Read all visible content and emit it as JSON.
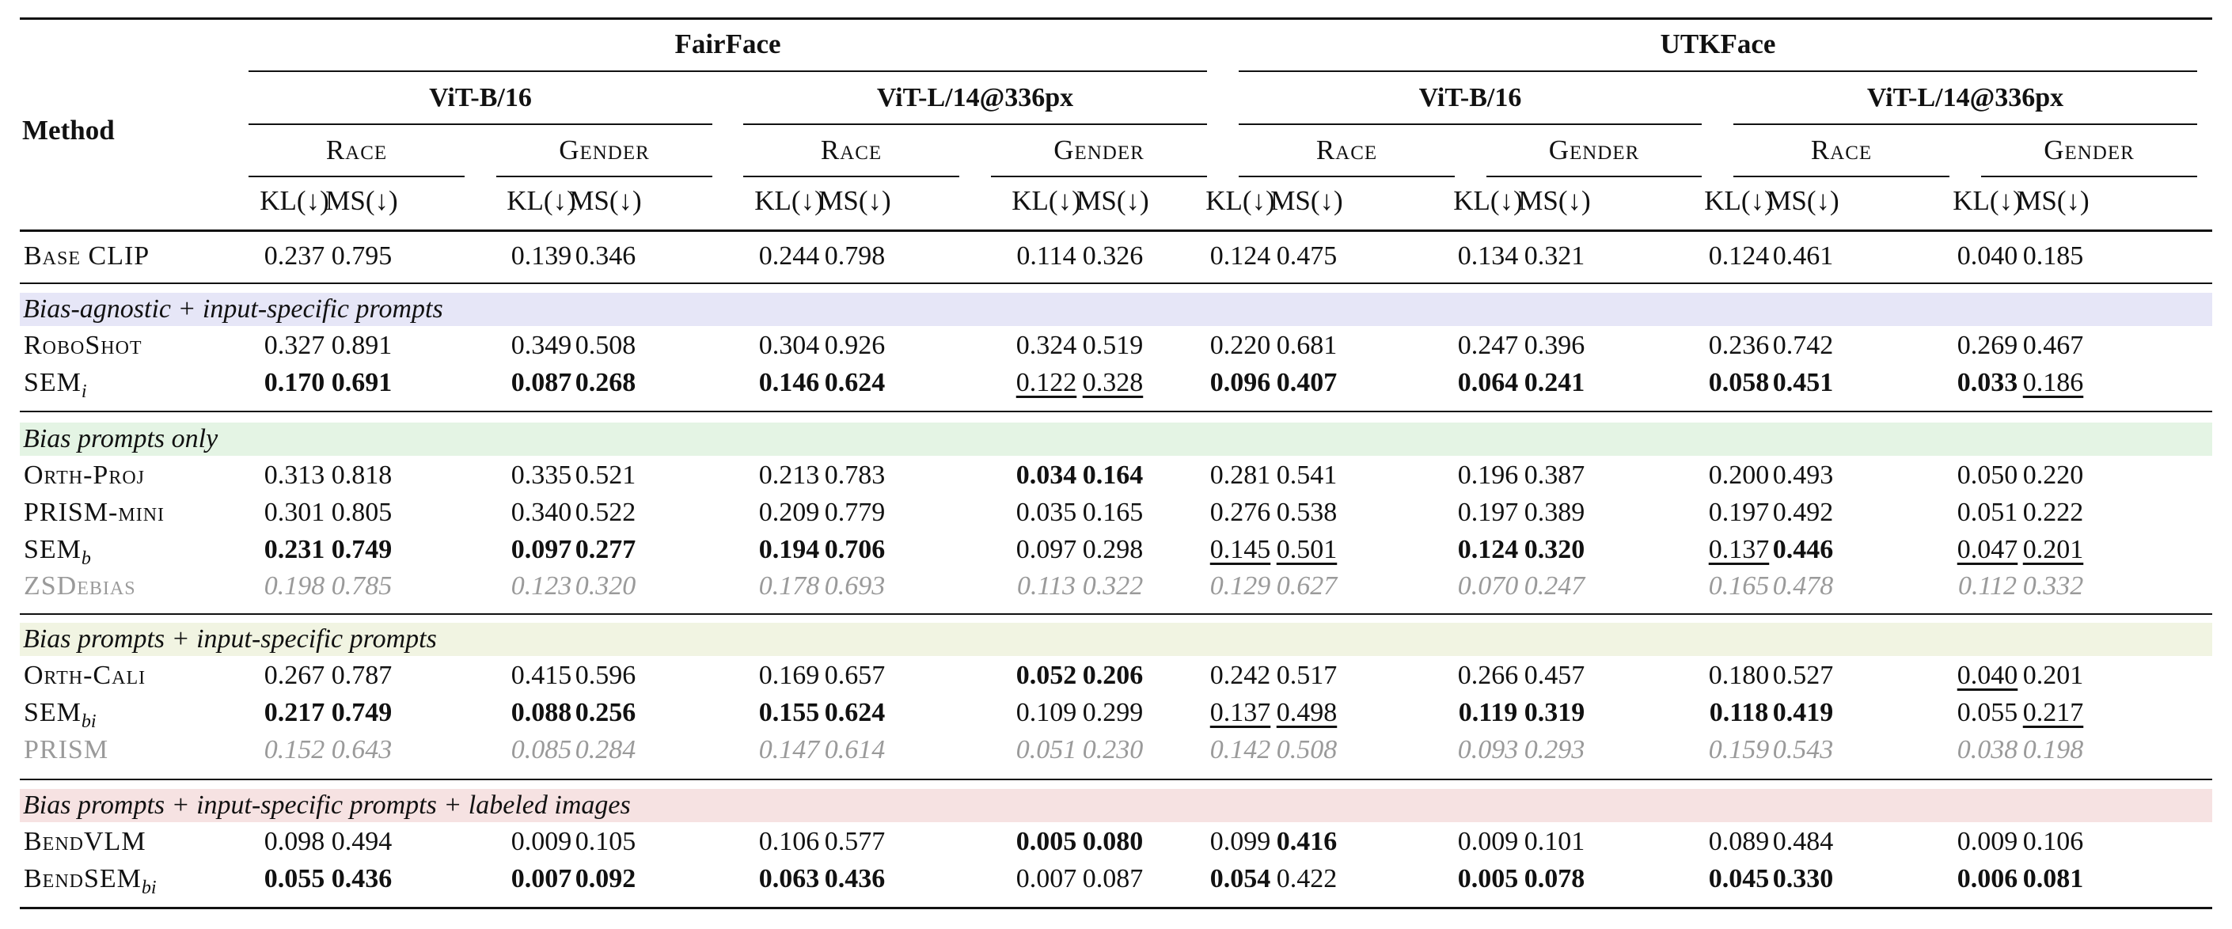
{
  "header": {
    "method": "Method",
    "datasets": [
      "FairFace",
      "UTKFace"
    ],
    "models": [
      "ViT-B/16",
      "ViT-L/14@336px",
      "ViT-B/16",
      "ViT-L/14@336px"
    ],
    "attributes": [
      "Race",
      "Gender",
      "Race",
      "Gender",
      "Race",
      "Gender",
      "Race",
      "Gender"
    ],
    "metrics": [
      "KL(↓)",
      "MS(↓)",
      "KL(↓)",
      "MS(↓)",
      "KL(↓)",
      "MS(↓)",
      "KL(↓)",
      "MS(↓)",
      "KL(↓)",
      "MS(↓)",
      "KL(↓)",
      "MS(↓)",
      "KL(↓)",
      "MS(↓)",
      "KL(↓)",
      "MS(↓)"
    ]
  },
  "sections": [
    {
      "label": "",
      "rows": [
        {
          "name": "Base CLIP",
          "sub": "",
          "values": [
            "0.237",
            "0.795",
            "0.139",
            "0.346",
            "0.244",
            "0.798",
            "0.114",
            "0.326",
            "0.124",
            "0.475",
            "0.134",
            "0.321",
            "0.124",
            "0.461",
            "0.040",
            "0.185"
          ],
          "bold": [],
          "underline": []
        }
      ]
    },
    {
      "label": "Bias-agnostic + input-specific prompts",
      "color": "#e6e6f7",
      "rows": [
        {
          "name": "RoboShot",
          "sub": "",
          "values": [
            "0.327",
            "0.891",
            "0.349",
            "0.508",
            "0.304",
            "0.926",
            "0.324",
            "0.519",
            "0.220",
            "0.681",
            "0.247",
            "0.396",
            "0.236",
            "0.742",
            "0.269",
            "0.467"
          ],
          "bold": [],
          "underline": []
        },
        {
          "name": "SEM",
          "sub": "i",
          "values": [
            "0.170",
            "0.691",
            "0.087",
            "0.268",
            "0.146",
            "0.624",
            "0.122",
            "0.328",
            "0.096",
            "0.407",
            "0.064",
            "0.241",
            "0.058",
            "0.451",
            "0.033",
            "0.186"
          ],
          "bold": [
            0,
            1,
            2,
            3,
            4,
            5,
            8,
            9,
            10,
            11,
            12,
            13,
            14
          ],
          "underline": [
            6,
            7,
            15
          ]
        }
      ]
    },
    {
      "label": "Bias prompts only",
      "color": "#e4f4e4",
      "rows": [
        {
          "name": "Orth-Proj",
          "sub": "",
          "values": [
            "0.313",
            "0.818",
            "0.335",
            "0.521",
            "0.213",
            "0.783",
            "0.034",
            "0.164",
            "0.281",
            "0.541",
            "0.196",
            "0.387",
            "0.200",
            "0.493",
            "0.050",
            "0.220"
          ],
          "bold": [
            6,
            7
          ],
          "underline": []
        },
        {
          "name": "PRISM-mini",
          "sub": "",
          "values": [
            "0.301",
            "0.805",
            "0.340",
            "0.522",
            "0.209",
            "0.779",
            "0.035",
            "0.165",
            "0.276",
            "0.538",
            "0.197",
            "0.389",
            "0.197",
            "0.492",
            "0.051",
            "0.222"
          ],
          "bold": [],
          "underline": []
        },
        {
          "name": "SEM",
          "sub": "b",
          "values": [
            "0.231",
            "0.749",
            "0.097",
            "0.277",
            "0.194",
            "0.706",
            "0.097",
            "0.298",
            "0.145",
            "0.501",
            "0.124",
            "0.320",
            "0.137",
            "0.446",
            "0.047",
            "0.201"
          ],
          "bold": [
            0,
            1,
            2,
            3,
            4,
            5,
            10,
            11,
            13
          ],
          "underline": [
            8,
            9,
            12,
            14,
            15
          ]
        },
        {
          "name": "ZSDebias",
          "sub": "",
          "ref": true,
          "values": [
            "0.198",
            "0.785",
            "0.123",
            "0.320",
            "0.178",
            "0.693",
            "0.113",
            "0.322",
            "0.129",
            "0.627",
            "0.070",
            "0.247",
            "0.165",
            "0.478",
            "0.112",
            "0.332"
          ],
          "bold": [],
          "underline": []
        }
      ]
    },
    {
      "label": "Bias prompts + input-specific prompts",
      "color": "#f1f4e2",
      "rows": [
        {
          "name": "Orth-Cali",
          "sub": "",
          "values": [
            "0.267",
            "0.787",
            "0.415",
            "0.596",
            "0.169",
            "0.657",
            "0.052",
            "0.206",
            "0.242",
            "0.517",
            "0.266",
            "0.457",
            "0.180",
            "0.527",
            "0.040",
            "0.201"
          ],
          "bold": [
            6,
            7
          ],
          "underline": [
            14
          ]
        },
        {
          "name": "SEM",
          "sub": "bi",
          "values": [
            "0.217",
            "0.749",
            "0.088",
            "0.256",
            "0.155",
            "0.624",
            "0.109",
            "0.299",
            "0.137",
            "0.498",
            "0.119",
            "0.319",
            "0.118",
            "0.419",
            "0.055",
            "0.217"
          ],
          "bold": [
            0,
            1,
            2,
            3,
            4,
            5,
            10,
            11,
            12,
            13
          ],
          "underline": [
            8,
            9,
            15
          ]
        },
        {
          "name": "PRISM",
          "sub": "",
          "ref": true,
          "values": [
            "0.152",
            "0.643",
            "0.085",
            "0.284",
            "0.147",
            "0.614",
            "0.051",
            "0.230",
            "0.142",
            "0.508",
            "0.093",
            "0.293",
            "0.159",
            "0.543",
            "0.038",
            "0.198"
          ],
          "bold": [],
          "underline": []
        }
      ]
    },
    {
      "label": "Bias prompts + input-specific prompts + labeled images",
      "color": "#f6e2e2",
      "rows": [
        {
          "name": "BendVLM",
          "sub": "",
          "values": [
            "0.098",
            "0.494",
            "0.009",
            "0.105",
            "0.106",
            "0.577",
            "0.005",
            "0.080",
            "0.099",
            "0.416",
            "0.009",
            "0.101",
            "0.089",
            "0.484",
            "0.009",
            "0.106"
          ],
          "bold": [
            6,
            7,
            9
          ],
          "underline": []
        },
        {
          "name": "BendSEM",
          "sub": "bi",
          "values": [
            "0.055",
            "0.436",
            "0.007",
            "0.092",
            "0.063",
            "0.436",
            "0.007",
            "0.087",
            "0.054",
            "0.422",
            "0.005",
            "0.078",
            "0.045",
            "0.330",
            "0.006",
            "0.081"
          ],
          "bold": [
            0,
            1,
            2,
            3,
            4,
            5,
            8,
            10,
            11,
            12,
            13,
            14,
            15
          ],
          "underline": []
        }
      ]
    }
  ]
}
